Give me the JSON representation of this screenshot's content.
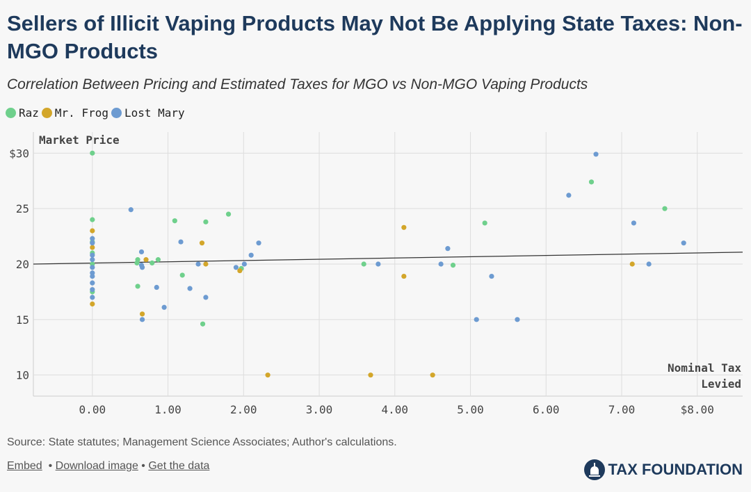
{
  "header": {
    "title": "Sellers of Illicit Vaping Products May Not Be Applying State Taxes: Non-MGO Products",
    "subtitle": "Correlation Between Pricing and Estimated Taxes for MGO vs Non-MGO Vaping Products"
  },
  "footer": {
    "source": "Source: State statutes; Management Science Associates; Author's calculations.",
    "embed": "Embed",
    "download": "Download image",
    "data": "Get the data",
    "sep": "•",
    "logo": "TAX FOUNDATION"
  },
  "chart_data": {
    "type": "scatter",
    "ylabel": "Market Price",
    "xlabel": "Nominal Tax Levied",
    "xlim": [
      -0.78,
      8.6
    ],
    "ylim": [
      8.1,
      31.9
    ],
    "xticks": [
      0,
      1,
      2,
      3,
      4,
      5,
      6,
      7,
      8
    ],
    "xtick_labels": [
      "0.00",
      "1.00",
      "2.00",
      "3.00",
      "4.00",
      "5.00",
      "6.00",
      "7.00",
      "$8.00"
    ],
    "yticks": [
      30,
      25,
      20,
      15,
      10
    ],
    "ytick_labels": [
      "$30",
      "25",
      "20",
      "15",
      "10"
    ],
    "grid": true,
    "legend": "top-left",
    "trendline": {
      "intercept": 20.09,
      "slope": 0.114,
      "color": "#333333"
    },
    "series": [
      {
        "name": "Raz",
        "color": "#6fd08c",
        "points": [
          [
            0,
            30
          ],
          [
            0,
            24
          ],
          [
            0,
            22
          ],
          [
            0,
            21
          ],
          [
            0,
            20
          ],
          [
            0,
            17.5
          ],
          [
            0.6,
            20.4
          ],
          [
            0.59,
            20.1
          ],
          [
            0.79,
            20.1
          ],
          [
            0.87,
            20.4
          ],
          [
            0.6,
            18
          ],
          [
            1.09,
            23.9
          ],
          [
            1.5,
            23.8
          ],
          [
            1.8,
            24.5
          ],
          [
            1.19,
            19
          ],
          [
            1.46,
            14.6
          ],
          [
            1.97,
            19.6
          ],
          [
            3.59,
            20
          ],
          [
            5.19,
            23.7
          ],
          [
            4.77,
            19.9
          ],
          [
            6.6,
            27.4
          ],
          [
            7.57,
            25
          ]
        ]
      },
      {
        "name": "Mr. Frog",
        "color": "#d3a62a",
        "points": [
          [
            0,
            23
          ],
          [
            0,
            21.5
          ],
          [
            0,
            16.4
          ],
          [
            0.71,
            20.4
          ],
          [
            0.66,
            15.5
          ],
          [
            1.45,
            21.9
          ],
          [
            1.5,
            20
          ],
          [
            1.95,
            19.4
          ],
          [
            2.32,
            10
          ],
          [
            4.12,
            23.3
          ],
          [
            4.12,
            18.9
          ],
          [
            3.68,
            10
          ],
          [
            4.5,
            10
          ],
          [
            7.14,
            20
          ]
        ]
      },
      {
        "name": "Lost Mary",
        "color": "#6d9bd1",
        "points": [
          [
            0,
            22.3
          ],
          [
            0,
            21.9
          ],
          [
            0,
            20.8
          ],
          [
            0,
            20.4
          ],
          [
            0,
            19.7
          ],
          [
            0,
            19.2
          ],
          [
            0,
            18.9
          ],
          [
            0,
            18.3
          ],
          [
            0,
            17.7
          ],
          [
            0,
            17
          ],
          [
            0.51,
            24.9
          ],
          [
            0.65,
            21.1
          ],
          [
            0.65,
            19.9
          ],
          [
            0.66,
            19.7
          ],
          [
            0.85,
            17.9
          ],
          [
            0.66,
            15
          ],
          [
            0.95,
            16.1
          ],
          [
            1.17,
            22
          ],
          [
            1.29,
            17.8
          ],
          [
            1.4,
            20
          ],
          [
            1.5,
            17
          ],
          [
            2.2,
            21.9
          ],
          [
            2.1,
            20.8
          ],
          [
            1.9,
            19.7
          ],
          [
            2.01,
            20
          ],
          [
            3.78,
            20
          ],
          [
            4.61,
            20
          ],
          [
            4.7,
            21.4
          ],
          [
            5.08,
            15
          ],
          [
            5.28,
            18.9
          ],
          [
            5.62,
            15
          ],
          [
            6.3,
            26.2
          ],
          [
            6.66,
            29.9
          ],
          [
            7.16,
            23.7
          ],
          [
            7.36,
            20
          ],
          [
            7.82,
            21.9
          ]
        ]
      }
    ]
  }
}
